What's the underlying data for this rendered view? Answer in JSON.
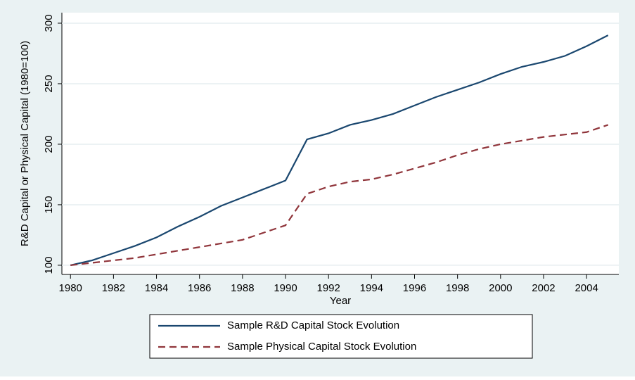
{
  "chart_data": {
    "type": "line",
    "xlabel": "Year",
    "ylabel": "R&D Capital or Physical Capital (1980=100)",
    "x": [
      1980,
      1981,
      1982,
      1983,
      1984,
      1985,
      1986,
      1987,
      1988,
      1989,
      1990,
      1991,
      1992,
      1993,
      1994,
      1995,
      1996,
      1997,
      1998,
      1999,
      2000,
      2001,
      2002,
      2003,
      2004,
      2005
    ],
    "series": [
      {
        "name": "Sample R&D Capital Stock Evolution",
        "color": "#1a476f",
        "dash": "solid",
        "values": [
          100,
          104,
          110,
          116,
          123,
          132,
          140,
          149,
          156,
          163,
          170,
          204,
          209,
          216,
          220,
          225,
          232,
          239,
          245,
          251,
          258,
          264,
          268,
          273,
          281,
          290
        ]
      },
      {
        "name": "Sample Physical Capital Stock Evolution",
        "color": "#90353b",
        "dash": "dashed",
        "values": [
          100,
          102,
          104,
          106,
          109,
          112,
          115,
          118,
          121,
          127,
          133,
          159,
          165,
          169,
          171,
          175,
          180,
          185,
          191,
          196,
          200,
          203,
          206,
          208,
          210,
          216
        ]
      }
    ],
    "xlim": [
      1979.6,
      2005.5
    ],
    "ylim": [
      92.4,
      308.7
    ],
    "xticks": [
      1980,
      1982,
      1984,
      1986,
      1988,
      1990,
      1992,
      1994,
      1996,
      1998,
      2000,
      2002,
      2004
    ],
    "yticks": [
      100,
      150,
      200,
      250,
      300
    ],
    "grid": true,
    "legend": "bottom"
  }
}
